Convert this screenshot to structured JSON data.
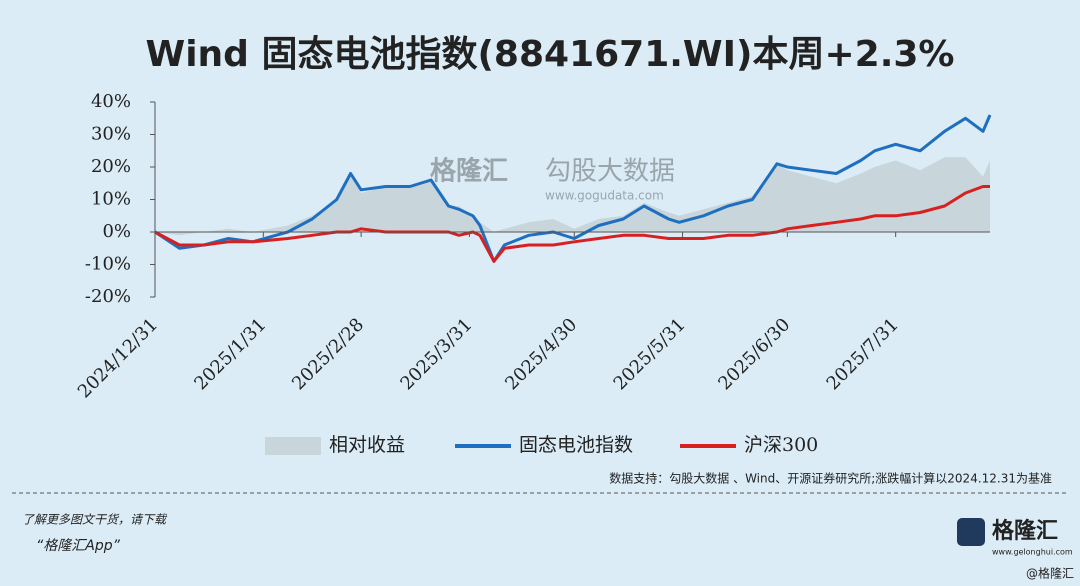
{
  "chart_data": {
    "type": "line",
    "title": "Wind 固态电池指数(8841671.WI)本周+2.3%",
    "x": [
      "2024/12/31",
      "2025/1/7",
      "2025/1/14",
      "2025/1/21",
      "2025/1/28",
      "2025/2/7",
      "2025/2/14",
      "2025/2/21",
      "2025/2/25",
      "2025/2/28",
      "2025/3/7",
      "2025/3/14",
      "2025/3/20",
      "2025/3/25",
      "2025/3/28",
      "2025/4/1",
      "2025/4/3",
      "2025/4/7",
      "2025/4/10",
      "2025/4/17",
      "2025/4/24",
      "2025/4/30",
      "2025/5/7",
      "2025/5/14",
      "2025/5/20",
      "2025/5/27",
      "2025/5/30",
      "2025/6/6",
      "2025/6/13",
      "2025/6/20",
      "2025/6/27",
      "2025/6/30",
      "2025/7/7",
      "2025/7/14",
      "2025/7/21",
      "2025/7/25",
      "2025/7/31",
      "2025/8/7",
      "2025/8/14",
      "2025/8/20",
      "2025/8/25",
      "2025/8/27"
    ],
    "series": [
      {
        "name": "相对收益",
        "style": "area",
        "color": "#c8d5da",
        "values": [
          0,
          -1,
          0,
          1,
          0,
          2,
          5,
          10,
          18,
          12,
          14,
          14,
          16,
          8,
          8,
          5,
          3,
          0,
          1,
          3,
          4,
          1,
          4,
          5,
          9,
          6,
          5,
          7,
          9,
          11,
          21,
          19,
          17,
          15,
          18,
          20,
          22,
          19,
          23,
          23,
          17,
          22
        ]
      },
      {
        "name": "固态电池指数",
        "style": "line",
        "color": "#1f6fc0",
        "values": [
          0,
          -5,
          -4,
          -2,
          -3,
          0,
          4,
          10,
          18,
          13,
          14,
          14,
          16,
          8,
          7,
          5,
          2,
          -9,
          -4,
          -1,
          0,
          -2,
          2,
          4,
          8,
          4,
          3,
          5,
          8,
          10,
          21,
          20,
          19,
          18,
          22,
          25,
          27,
          25,
          31,
          35,
          31,
          36
        ]
      },
      {
        "name": "沪深300",
        "style": "line",
        "color": "#d92020",
        "values": [
          0,
          -4,
          -4,
          -3,
          -3,
          -2,
          -1,
          0,
          0,
          1,
          0,
          0,
          0,
          0,
          -1,
          0,
          -1,
          -9,
          -5,
          -4,
          -4,
          -3,
          -2,
          -1,
          -1,
          -2,
          -2,
          -2,
          -1,
          -1,
          0,
          1,
          2,
          3,
          4,
          5,
          5,
          6,
          8,
          12,
          14,
          14
        ]
      }
    ],
    "xlim": [
      "2024/12/31",
      "2025/8/27"
    ],
    "xticks": [
      "2024/12/31",
      "2025/1/31",
      "2025/2/28",
      "2025/3/31",
      "2025/4/30",
      "2025/5/31",
      "2025/6/30",
      "2025/7/31"
    ],
    "ylim": [
      -20,
      40
    ],
    "yticks": [
      {
        "value": -20,
        "label": "-20%"
      },
      {
        "value": -10,
        "label": "-10%"
      },
      {
        "value": 0,
        "label": "0%"
      },
      {
        "value": 10,
        "label": "10%"
      },
      {
        "value": 20,
        "label": "20%"
      },
      {
        "value": 30,
        "label": "30%"
      },
      {
        "value": 40,
        "label": "40%"
      }
    ],
    "source": "数据支持：勾股大数据 、Wind、开源证券研究所;涨跌幅计算以2024.12.31为基准",
    "watermark": [
      "格隆汇",
      "勾股大数据",
      "www.gogudata.com"
    ]
  },
  "footer": {
    "promo": "了解更多图文干货，请下载",
    "app": "“格隆汇App”",
    "logo": "格隆汇",
    "site": "www.gelonghui.com",
    "corner": "@格隆汇"
  }
}
